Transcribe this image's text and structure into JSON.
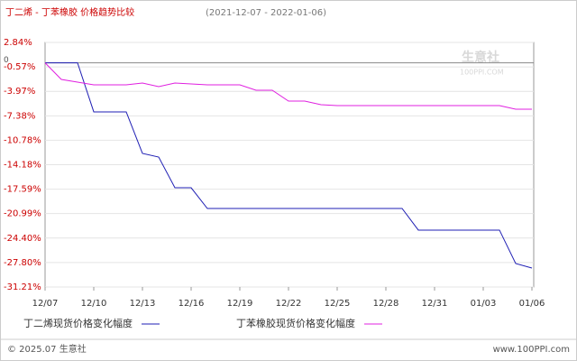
{
  "chart_data": {
    "type": "line",
    "title": "丁二烯 - 丁苯橡胶 价格趋势比较",
    "subtitle": "(2021-12-07 - 2022-01-06)",
    "categories": [
      "12/07",
      null,
      null,
      "12/10",
      null,
      null,
      "12/13",
      null,
      null,
      "12/16",
      null,
      null,
      "12/19",
      null,
      null,
      "12/22",
      null,
      null,
      "12/25",
      null,
      null,
      "12/28",
      null,
      null,
      "12/31",
      null,
      null,
      "01/03",
      null,
      null,
      "01/06"
    ],
    "series": [
      {
        "name": "丁二烯现货价格变化幅度",
        "color": "#1f1fb4",
        "values": [
          0,
          0,
          0,
          -6.83,
          -6.83,
          -6.83,
          -12.61,
          -13.12,
          -17.39,
          -17.39,
          -20.28,
          -20.28,
          -20.28,
          -20.28,
          -20.28,
          -20.28,
          -20.28,
          -20.28,
          -20.28,
          -20.28,
          -20.28,
          -20.28,
          -20.28,
          -23.29,
          -23.29,
          -23.29,
          -23.29,
          -23.29,
          -23.29,
          -27.94,
          -28.57
        ]
      },
      {
        "name": "丁苯橡胶现货价格变化幅度",
        "color": "#e020e0",
        "values": [
          0,
          -2.31,
          -2.69,
          -3.07,
          -3.07,
          -3.07,
          -2.81,
          -3.32,
          -2.81,
          -2.94,
          -3.07,
          -3.07,
          -3.07,
          -3.82,
          -3.82,
          -5.33,
          -5.33,
          -5.83,
          -5.96,
          -5.96,
          -5.96,
          -5.96,
          -5.96,
          -5.96,
          -5.96,
          -5.96,
          -5.96,
          -5.96,
          -5.96,
          -6.46,
          -6.46
        ]
      }
    ],
    "ylim": [
      -31.21,
      2.84
    ],
    "yticks": [
      {
        "value": 2.84,
        "label": "2.84%"
      },
      {
        "value": -0.57,
        "label": "-0.57%"
      },
      {
        "value": -3.97,
        "label": "-3.97%"
      },
      {
        "value": -7.38,
        "label": "-7.38%"
      },
      {
        "value": -10.78,
        "label": "-10.78%"
      },
      {
        "value": -14.18,
        "label": "-14.18%"
      },
      {
        "value": -17.59,
        "label": "-17.59%"
      },
      {
        "value": -20.99,
        "label": "-20.99%"
      },
      {
        "value": -24.4,
        "label": "-24.40%"
      },
      {
        "value": -27.8,
        "label": "-27.80%"
      },
      {
        "value": -31.21,
        "label": "-31.21%"
      }
    ],
    "zero_label": "0",
    "grid": true,
    "watermark": "生意社",
    "watermark_sub": "100PPI.COM",
    "footer_left": "© 2025.07 生意社",
    "footer_right": "www.100PPI.com"
  }
}
